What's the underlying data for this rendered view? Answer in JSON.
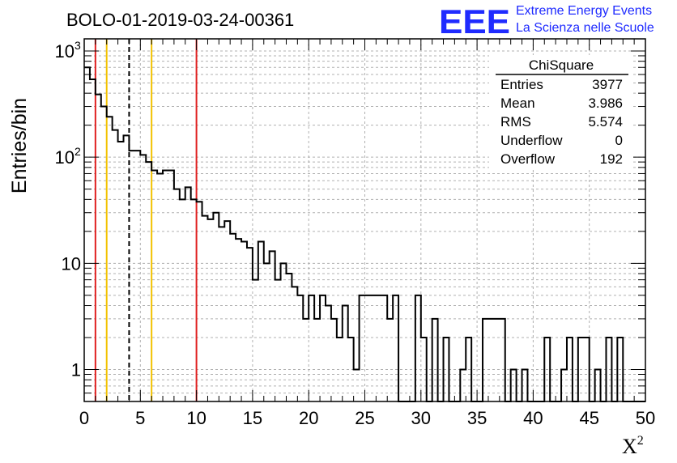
{
  "chart_data": {
    "type": "histogram",
    "title": "BOLO-01-2019-03-24-00361",
    "xlabel": "X",
    "xlabel_superscript": "2",
    "ylabel": "Entries/bin",
    "xlim": [
      0,
      50
    ],
    "ylim": [
      0.5,
      1300
    ],
    "yscale": "log",
    "grid": true,
    "bin_width": 0.5,
    "x_ticks": [
      0,
      5,
      10,
      15,
      20,
      25,
      30,
      35,
      40,
      45,
      50
    ],
    "y_ticks": [
      {
        "value": 1,
        "label": "1",
        "sup": ""
      },
      {
        "value": 10,
        "label": "10",
        "sup": ""
      },
      {
        "value": 100,
        "label": "10",
        "sup": "2"
      },
      {
        "value": 1000,
        "label": "10",
        "sup": "3"
      }
    ],
    "values": [
      700,
      540,
      390,
      300,
      240,
      180,
      140,
      160,
      115,
      115,
      105,
      90,
      75,
      70,
      75,
      75,
      50,
      40,
      52,
      40,
      38,
      28,
      26,
      30,
      22,
      25,
      19,
      17,
      16,
      14,
      7,
      16,
      10,
      13,
      7,
      10,
      8,
      6,
      5,
      3,
      5,
      3,
      5,
      4,
      3,
      2,
      4,
      2,
      1,
      5,
      5,
      5,
      5,
      5,
      3,
      5,
      0,
      0,
      0,
      5,
      2,
      0,
      3,
      0,
      2,
      0,
      0,
      1,
      2,
      0,
      0,
      3,
      3,
      3,
      3,
      0,
      1,
      0,
      1,
      0,
      0,
      0,
      2,
      0,
      0,
      1,
      2,
      0,
      2,
      2,
      0,
      1,
      0,
      2,
      0,
      2,
      0,
      0,
      0,
      0
    ],
    "vertical_lines": [
      {
        "x": 1,
        "color": "#e02020",
        "style": "solid"
      },
      {
        "x": 2,
        "color": "#f2c200",
        "style": "solid"
      },
      {
        "x": 4,
        "color": "#000000",
        "style": "dashed"
      },
      {
        "x": 6,
        "color": "#f2c200",
        "style": "solid"
      },
      {
        "x": 10,
        "color": "#e02020",
        "style": "solid"
      }
    ],
    "stats_box": {
      "title": "ChiSquare",
      "rows": [
        {
          "label": "Entries",
          "value": "3977"
        },
        {
          "label": "Mean",
          "value": "3.986"
        },
        {
          "label": "RMS",
          "value": "5.574"
        },
        {
          "label": "Underflow",
          "value": "0"
        },
        {
          "label": "Overflow",
          "value": "192"
        }
      ]
    }
  },
  "logo": {
    "text": "EEE",
    "line1": "Extreme Energy Events",
    "line2": "La Scienza nelle Scuole",
    "color": "#1f2bff"
  }
}
